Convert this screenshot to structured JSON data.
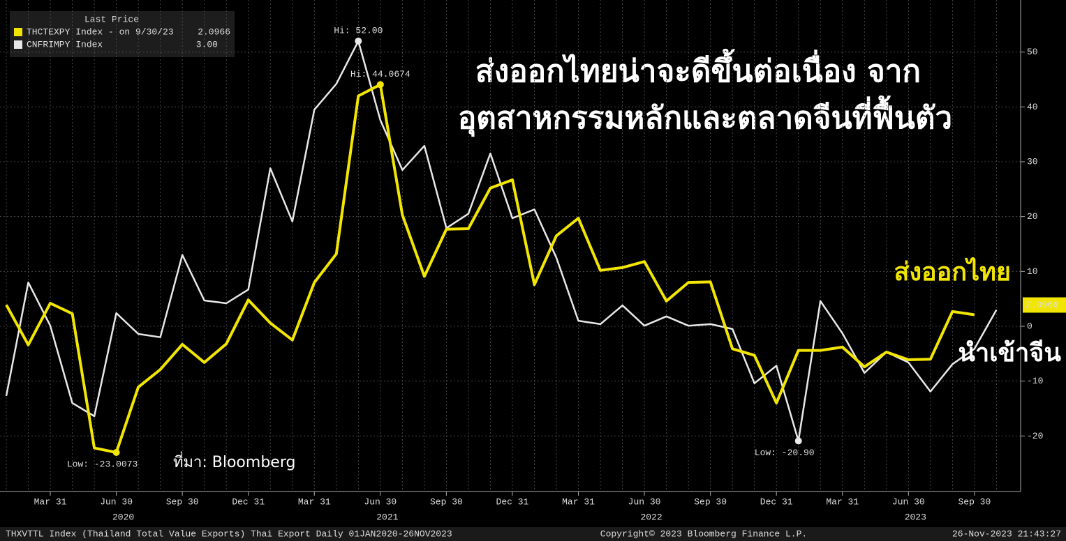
{
  "chart_data": {
    "type": "line",
    "title": [
      "ส่งออกไทยน่าจะดีขึ้นต่อเนื่อง จาก",
      "อุตสาหกรรมหลักและตลาดจีนที่ฟื้นตัว"
    ],
    "legend_header": "Last Price",
    "categories": [
      null,
      null,
      "Mar 31",
      null,
      null,
      "Jun 30",
      null,
      null,
      "Sep 30",
      null,
      null,
      "Dec 31",
      null,
      null,
      "Mar 31",
      null,
      null,
      "Jun 30",
      null,
      null,
      "Sep 30",
      null,
      null,
      "Dec 31",
      null,
      null,
      "Mar 31",
      null,
      null,
      "Jun 30",
      null,
      null,
      "Sep 30",
      null,
      null,
      "Dec 31",
      null,
      null,
      "Mar 31",
      null,
      null,
      "Jun 30",
      null,
      null,
      "Sep 30",
      null
    ],
    "years": [
      {
        "label": "2020",
        "at": 5
      },
      {
        "label": "2021",
        "at": 17
      },
      {
        "label": "2022",
        "at": 29
      },
      {
        "label": "2023",
        "at": 41
      }
    ],
    "series": [
      {
        "name": "THCTEXPY Index - on 9/30/23",
        "legend_value": "2.0966",
        "last_label": "2.0966",
        "tag": "ส่งออกไทย",
        "color": "#f2e600",
        "values": [
          3.9,
          -3.4,
          4.2,
          2.3,
          -22.2,
          -23.0073,
          -11.1,
          -7.9,
          -3.3,
          -6.6,
          -3.2,
          4.8,
          0.6,
          -2.5,
          8.0,
          13.2,
          42.0,
          44.0674,
          20.3,
          9.1,
          17.7,
          17.8,
          25.2,
          26.7,
          7.6,
          16.5,
          19.7,
          10.2,
          10.7,
          11.8,
          4.6,
          8.0,
          8.1,
          -4.1,
          -5.3,
          -14.0,
          -4.4,
          -4.4,
          -3.8,
          -7.4,
          -4.7,
          -6.1,
          -6.0,
          2.7,
          2.0966,
          null
        ]
      },
      {
        "name": "CNFRIMPY Index",
        "legend_value": "3.00",
        "tag": "นำเข้าจีน",
        "color": "#e8e8e8",
        "values": [
          -12.7,
          8.0,
          0.1,
          -14.0,
          -16.4,
          2.4,
          -1.4,
          -2.0,
          13.0,
          4.7,
          4.2,
          6.7,
          28.8,
          19.1,
          39.5,
          44.2,
          52.0,
          37.6,
          28.5,
          32.9,
          17.9,
          20.5,
          31.5,
          19.7,
          21.3,
          12.5,
          1.0,
          0.4,
          3.8,
          0.1,
          1.8,
          0.1,
          0.4,
          -0.5,
          -10.4,
          -7.2,
          -20.9,
          4.6,
          -1.3,
          -8.5,
          -4.7,
          -6.6,
          -11.9,
          -6.9,
          -4.1,
          3.0
        ]
      }
    ],
    "annotations": [
      {
        "text": "Hi: 52.00",
        "series": 1,
        "index": 16
      },
      {
        "text": "Hi: 44.0674",
        "series": 0,
        "index": 17
      },
      {
        "text": "Low: -23.0073",
        "series": 0,
        "index": 5
      },
      {
        "text": "Low: -20.90",
        "series": 1,
        "index": 36
      }
    ],
    "source": "ที่มา: Bloomberg",
    "ylim": [
      -30,
      60
    ],
    "yticks": [
      -20,
      -10,
      0,
      10,
      20,
      30,
      40,
      50
    ],
    "grid": true,
    "footer": [
      "THXVTTL Index (Thailand Total Value Exports) Thai Export  Daily 01JAN2020-26NOV2023",
      "Copyright© 2023 Bloomberg Finance L.P.",
      "26-Nov-2023 21:43:27"
    ]
  }
}
